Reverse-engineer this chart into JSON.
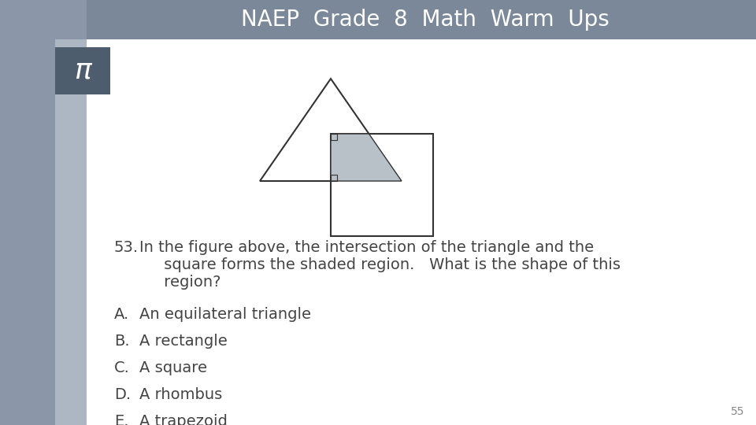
{
  "title": "NAEP  Grade  8  Math  Warm  Ups",
  "title_bg_color": "#7a8899",
  "title_text_color": "#ffffff",
  "slide_bg_color": "#8b96a8",
  "content_bg_color": "#ffffff",
  "left_bar_color": "#8b96a8",
  "pi_box_color": "#4d5d6e",
  "pi_symbol": "π",
  "question_number": "53.",
  "choices": [
    [
      "A.",
      "An equilateral triangle"
    ],
    [
      "B.",
      "A rectangle"
    ],
    [
      "C.",
      "A square"
    ],
    [
      "D.",
      "A rhombus"
    ],
    [
      "E.",
      "A trapezoid"
    ]
  ],
  "page_number": "55",
  "shaded_color": "#b8c0c8",
  "shape_stroke_color": "#333333",
  "text_color": "#444444",
  "font_size_title": 20,
  "font_size_choices": 14,
  "font_size_question": 14
}
